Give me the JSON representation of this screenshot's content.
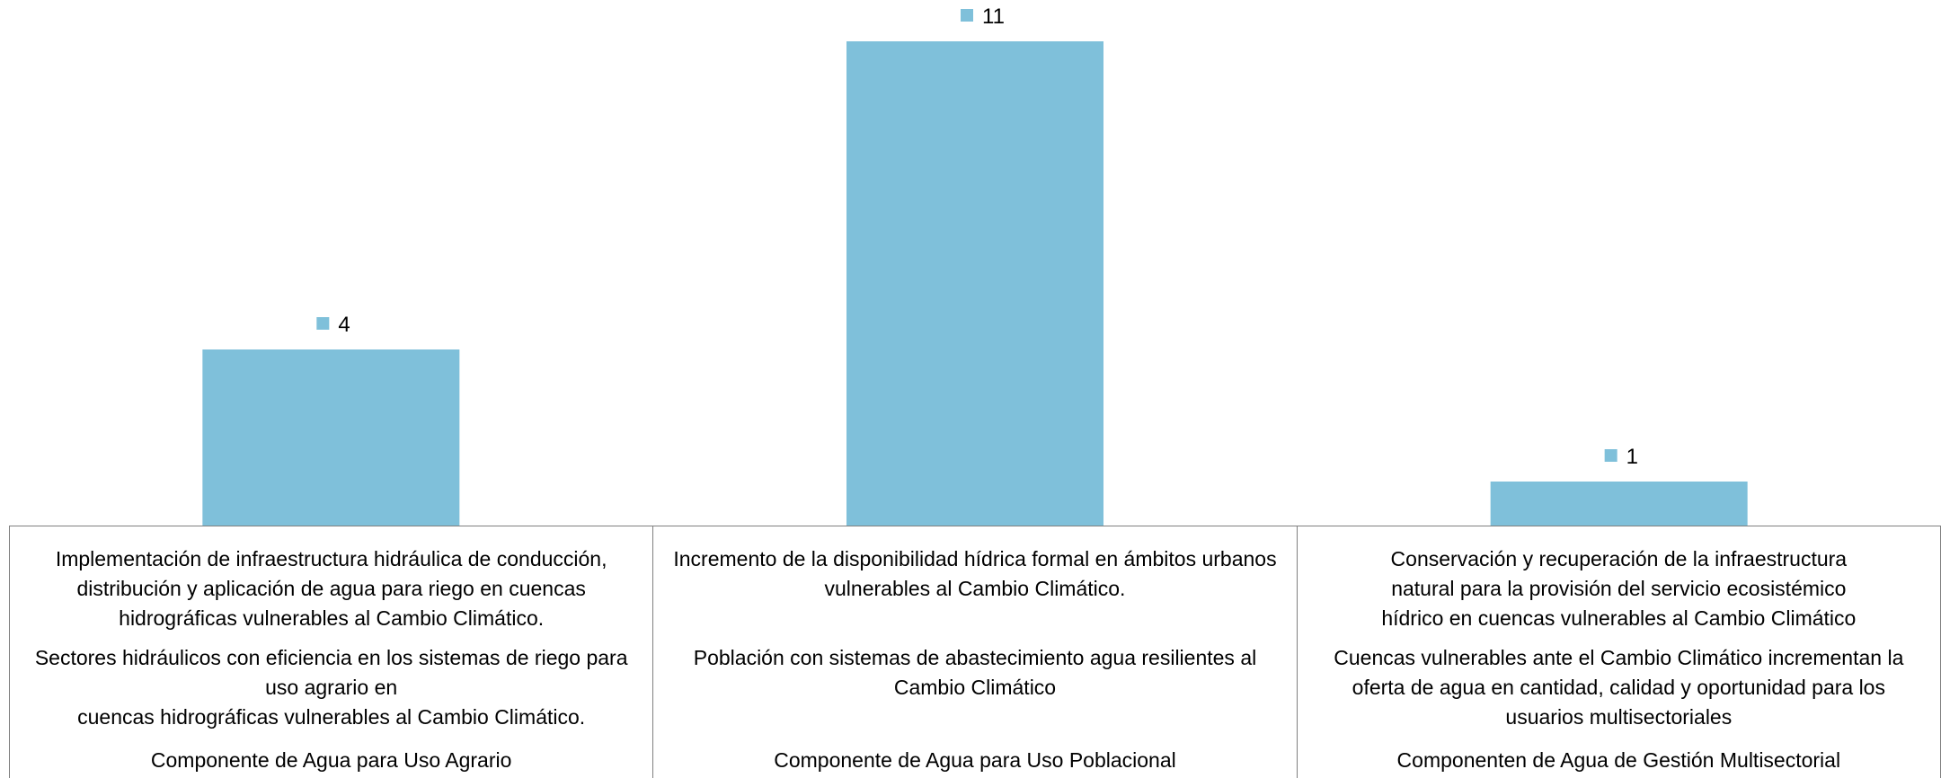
{
  "chart_data": {
    "type": "bar",
    "categories": [
      {
        "activity": "Implementación de infraestructura hidráulica de conducción,\ndistribución y aplicación de agua para riego en cuencas\nhidrográficas vulnerables al Cambio Climático.",
        "product": "Sectores hidráulicos con eficiencia en los sistemas de riego para\nuso agrario en\ncuencas hidrográficas vulnerables al Cambio Climático.",
        "component": "Componente de Agua para Uso Agrario"
      },
      {
        "activity": "Incremento de la disponibilidad hídrica formal en ámbitos urbanos\nvulnerables al Cambio Climático.",
        "product": "Población con sistemas de abastecimiento agua resilientes al\nCambio Climático",
        "component": "Componente de Agua para Uso Poblacional"
      },
      {
        "activity": "Conservación y recuperación de la infraestructura\nnatural para la provisión del servicio ecosistémico\nhídrico en cuencas vulnerables al Cambio Climático",
        "product": "Cuencas vulnerables ante el Cambio Climático incrementan la\noferta de agua en cantidad, calidad y oportunidad para los\nusuarios multisectoriales",
        "component": "Componenten de Agua de Gestión Multisectorial"
      }
    ],
    "values": [
      4,
      11,
      1
    ],
    "value_labels": [
      "4",
      "11",
      "1"
    ],
    "ylim": [
      0,
      11
    ],
    "grid": false,
    "bar_color": "#7FC0DA",
    "label_marker_color": "#7FC0DA"
  }
}
